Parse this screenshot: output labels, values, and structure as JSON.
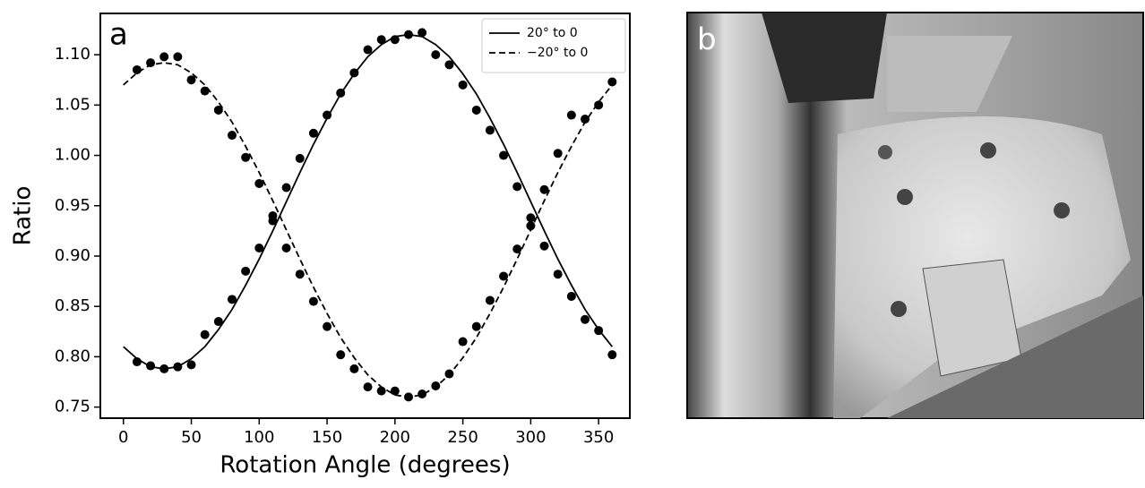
{
  "chart_data": {
    "type": "scatter",
    "panel_label": "a",
    "x_label": "Rotation Angle (degrees)",
    "y_label": "Ratio",
    "xlim": [
      -17,
      373
    ],
    "ylim": [
      0.739,
      1.141
    ],
    "xticks": [
      0,
      50,
      100,
      150,
      200,
      250,
      300,
      350
    ],
    "yticks": [
      {
        "value": 0.75,
        "label": "0.75"
      },
      {
        "value": 0.8,
        "label": "0.80"
      },
      {
        "value": 0.85,
        "label": "0.85"
      },
      {
        "value": 0.9,
        "label": "0.90"
      },
      {
        "value": 0.95,
        "label": "0.95"
      },
      {
        "value": 1.0,
        "label": "1.00"
      },
      {
        "value": 1.05,
        "label": "1.05"
      },
      {
        "value": 1.1,
        "label": "1.10"
      }
    ],
    "legend": "upper right",
    "series": [
      {
        "kind": "points",
        "color": "#000000",
        "x": [
          10,
          20,
          30,
          40,
          50,
          60,
          70,
          80,
          90,
          100,
          110,
          120,
          130,
          140,
          150,
          160,
          170,
          180,
          190,
          200,
          210,
          220,
          230,
          240,
          250,
          260,
          270,
          280,
          290,
          300,
          310,
          320,
          330,
          340,
          350,
          360
        ],
        "values": [
          0.795,
          0.791,
          0.788,
          0.79,
          0.792,
          0.822,
          0.835,
          0.857,
          0.885,
          0.908,
          0.94,
          0.968,
          0.997,
          1.022,
          1.04,
          1.062,
          1.082,
          1.105,
          1.115,
          1.115,
          1.12,
          1.122,
          1.1,
          1.09,
          1.07,
          1.045,
          1.025,
          1.0,
          0.969,
          0.938,
          0.91,
          0.882,
          0.86,
          0.837,
          0.826,
          0.802
        ]
      },
      {
        "kind": "points",
        "color": "#000000",
        "x": [
          10,
          20,
          30,
          40,
          50,
          60,
          70,
          80,
          90,
          100,
          110,
          120,
          130,
          140,
          150,
          160,
          170,
          180,
          190,
          200,
          210,
          220,
          230,
          240,
          250,
          260,
          270,
          280,
          290,
          300,
          310,
          320,
          330,
          340,
          350,
          360
        ],
        "values": [
          1.085,
          1.092,
          1.098,
          1.098,
          1.075,
          1.064,
          1.045,
          1.02,
          0.998,
          0.972,
          0.935,
          0.908,
          0.882,
          0.855,
          0.83,
          0.802,
          0.788,
          0.77,
          0.766,
          0.766,
          0.76,
          0.763,
          0.771,
          0.783,
          0.815,
          0.83,
          0.856,
          0.88,
          0.907,
          0.93,
          0.966,
          1.002,
          1.04,
          1.036,
          1.05,
          1.073
        ]
      },
      {
        "kind": "line",
        "name": "20° to 0",
        "line_style": "solid",
        "color": "#000000",
        "x": [
          0,
          10,
          20,
          30,
          40,
          50,
          60,
          70,
          80,
          90,
          100,
          110,
          120,
          130,
          140,
          150,
          160,
          170,
          180,
          190,
          200,
          210,
          220,
          230,
          240,
          250,
          260,
          270,
          280,
          290,
          300,
          310,
          320,
          330,
          340,
          350,
          360
        ],
        "values": [
          0.81,
          0.798,
          0.79,
          0.788,
          0.79,
          0.798,
          0.81,
          0.827,
          0.847,
          0.871,
          0.897,
          0.925,
          0.954,
          0.983,
          1.011,
          1.037,
          1.061,
          1.081,
          1.098,
          1.11,
          1.118,
          1.12,
          1.118,
          1.11,
          1.098,
          1.081,
          1.061,
          1.037,
          1.011,
          0.983,
          0.954,
          0.925,
          0.897,
          0.871,
          0.847,
          0.827,
          0.81
        ]
      },
      {
        "kind": "line",
        "name": "−20° to 0",
        "line_style": "dashed",
        "color": "#000000",
        "x": [
          0,
          10,
          20,
          30,
          40,
          50,
          60,
          70,
          80,
          90,
          100,
          110,
          120,
          130,
          140,
          150,
          160,
          170,
          180,
          190,
          200,
          210,
          220,
          230,
          240,
          250,
          260,
          270,
          280,
          290,
          300,
          310,
          320,
          330,
          340,
          350,
          360
        ],
        "values": [
          1.07,
          1.082,
          1.09,
          1.092,
          1.09,
          1.082,
          1.07,
          1.053,
          1.033,
          1.009,
          0.983,
          0.955,
          0.926,
          0.897,
          0.869,
          0.843,
          0.819,
          0.799,
          0.782,
          0.77,
          0.762,
          0.76,
          0.762,
          0.77,
          0.782,
          0.799,
          0.819,
          0.843,
          0.869,
          0.897,
          0.926,
          0.955,
          0.983,
          1.009,
          1.033,
          1.053,
          1.07
        ]
      }
    ]
  },
  "photo": {
    "panel_label": "b"
  }
}
